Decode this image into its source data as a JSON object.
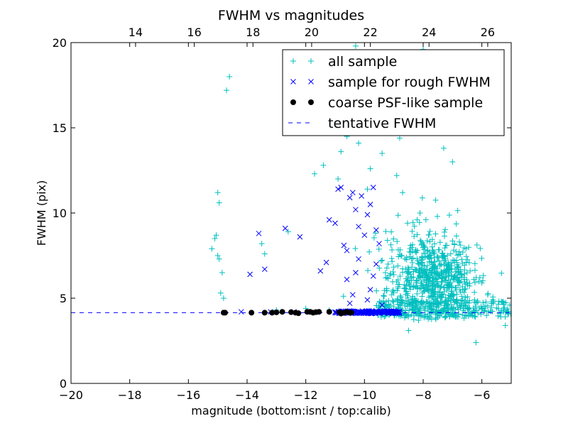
{
  "chart_data": {
    "type": "scatter",
    "title": "FWHM vs magnitudes",
    "xlabel": "magnitude (bottom:isnt / top:calib)",
    "ylabel": "FWHM (pix)",
    "xlim": [
      -20,
      -5
    ],
    "ylim": [
      0,
      20
    ],
    "xticks": [
      -20,
      -18,
      -16,
      -14,
      -12,
      -10,
      -8,
      -6
    ],
    "xtick_labels": [
      "−20",
      "−18",
      "−16",
      "−14",
      "−12",
      "−10",
      "−8",
      "−6"
    ],
    "yticks": [
      0,
      5,
      10,
      15,
      20
    ],
    "ytick_labels": [
      "0",
      "5",
      "10",
      "15",
      "20"
    ],
    "top_axis": {
      "offset": 31.8,
      "ticks": [
        14,
        16,
        18,
        20,
        22,
        24,
        26
      ],
      "tick_labels": [
        "14",
        "16",
        "18",
        "20",
        "22",
        "24",
        "26"
      ]
    },
    "grid": false,
    "legend_position": "upper right",
    "series": [
      {
        "name": "all sample",
        "marker": "plus",
        "color": "#00bfbf",
        "points": [
          [
            -15.2,
            7.9
          ],
          [
            -15.0,
            11.2
          ],
          [
            -14.95,
            10.6
          ],
          [
            -15.1,
            8.5
          ],
          [
            -15.05,
            8.7
          ],
          [
            -15.0,
            7.5
          ],
          [
            -14.95,
            7.3
          ],
          [
            -14.85,
            6.5
          ],
          [
            -14.9,
            5.3
          ],
          [
            -14.8,
            5.0
          ],
          [
            -14.7,
            17.2
          ],
          [
            -14.6,
            18.0
          ],
          [
            -13.5,
            8.2
          ],
          [
            -13.4,
            7.6
          ],
          [
            -12.6,
            8.9
          ],
          [
            -11.7,
            12.3
          ],
          [
            -11.4,
            12.8
          ],
          [
            -11.0,
            15.6
          ],
          [
            -10.9,
            12.0
          ],
          [
            -10.6,
            14.5
          ],
          [
            -10.5,
            16.7
          ],
          [
            -10.8,
            13.6
          ],
          [
            -10.3,
            19.8
          ],
          [
            -10.2,
            14.1
          ],
          [
            -10.0,
            16.3
          ],
          [
            -9.8,
            12.6
          ],
          [
            -9.6,
            17.1
          ],
          [
            -9.4,
            13.5
          ],
          [
            -9.2,
            15.2
          ],
          [
            -9.0,
            18.2
          ],
          [
            -8.8,
            14.4
          ],
          [
            -8.6,
            19.2
          ],
          [
            -8.4,
            16.0
          ],
          [
            -8.2,
            17.6
          ],
          [
            -8.0,
            19.6
          ],
          [
            -7.8,
            15.8
          ],
          [
            -7.6,
            17.0
          ],
          [
            -7.4,
            19.4
          ],
          [
            -7.2,
            16.4
          ],
          [
            -7.0,
            13.0
          ],
          [
            -7.3,
            13.8
          ],
          [
            -7.5,
            14.9
          ],
          [
            -8.5,
            3.1
          ],
          [
            -6.2,
            2.4
          ],
          [
            -5.2,
            3.4
          ],
          [
            -5.05,
            4.6
          ],
          [
            -11.2,
            4.3
          ],
          [
            -13.0,
            4.3
          ],
          [
            -12.0,
            4.4
          ],
          [
            -9.9,
            11.4
          ],
          [
            -8.7,
            11.2
          ],
          [
            -8.9,
            12.2
          ],
          [
            -7.3,
            7.2
          ],
          [
            -7.6,
            6.8
          ],
          [
            -8.1,
            6.2
          ],
          [
            -7.9,
            5.8
          ],
          [
            -7.7,
            5.4
          ],
          [
            -7.5,
            5.1
          ],
          [
            -6.9,
            5.6
          ],
          [
            -6.6,
            6.1
          ],
          [
            -6.4,
            6.6
          ],
          [
            -6.0,
            5.9
          ],
          [
            -5.8,
            5.2
          ],
          [
            -5.6,
            4.8
          ]
        ]
      },
      {
        "name": "sample for rough FWHM",
        "marker": "x",
        "color": "#0000ff",
        "points": [
          [
            -13.9,
            6.4
          ],
          [
            -13.6,
            8.8
          ],
          [
            -13.4,
            6.7
          ],
          [
            -12.7,
            9.1
          ],
          [
            -12.2,
            8.6
          ],
          [
            -11.5,
            6.6
          ],
          [
            -11.3,
            7.1
          ],
          [
            -11.2,
            9.6
          ],
          [
            -11.0,
            9.4
          ],
          [
            -10.9,
            11.4
          ],
          [
            -10.8,
            11.5
          ],
          [
            -10.7,
            8.1
          ],
          [
            -10.6,
            7.8
          ],
          [
            -10.5,
            10.9
          ],
          [
            -10.4,
            11.2
          ],
          [
            -10.3,
            10.2
          ],
          [
            -10.2,
            9.2
          ],
          [
            -10.1,
            11.0
          ],
          [
            -10.0,
            8.7
          ],
          [
            -9.9,
            9.9
          ],
          [
            -9.8,
            10.5
          ],
          [
            -9.7,
            11.5
          ],
          [
            -9.6,
            7.0
          ],
          [
            -10.6,
            6.1
          ],
          [
            -10.4,
            5.2
          ],
          [
            -10.5,
            4.7
          ],
          [
            -10.3,
            6.5
          ],
          [
            -10.2,
            7.3
          ],
          [
            -9.9,
            4.9
          ],
          [
            -9.8,
            5.5
          ],
          [
            -9.7,
            6.3
          ],
          [
            -9.6,
            9.0
          ],
          [
            -9.5,
            8.2
          ],
          [
            -9.4,
            4.6
          ],
          [
            -14.2,
            4.2
          ],
          [
            -13.2,
            4.2
          ],
          [
            -12.4,
            4.2
          ],
          [
            -11.6,
            4.2
          ],
          [
            -11.0,
            4.2
          ],
          [
            -10.5,
            4.15
          ],
          [
            -10.2,
            4.2
          ],
          [
            -9.9,
            4.15
          ],
          [
            -9.7,
            4.2
          ],
          [
            -9.5,
            4.2
          ]
        ]
      },
      {
        "name": "coarse PSF-like sample",
        "marker": "dot",
        "color": "#000000",
        "points": [
          [
            -14.8,
            4.15
          ],
          [
            -14.75,
            4.15
          ],
          [
            -13.85,
            4.15
          ],
          [
            -13.4,
            4.15
          ],
          [
            -13.15,
            4.15
          ],
          [
            -13.0,
            4.17
          ],
          [
            -12.8,
            4.2
          ],
          [
            -12.5,
            4.18
          ],
          [
            -12.35,
            4.15
          ],
          [
            -12.25,
            4.12
          ],
          [
            -11.95,
            4.2
          ],
          [
            -11.85,
            4.2
          ],
          [
            -11.75,
            4.15
          ],
          [
            -11.65,
            4.18
          ],
          [
            -11.55,
            4.2
          ],
          [
            -11.2,
            4.2
          ],
          [
            -10.85,
            4.18
          ],
          [
            -10.8,
            4.1
          ],
          [
            -10.7,
            4.15
          ],
          [
            -10.6,
            4.2
          ],
          [
            -10.5,
            4.15
          ],
          [
            -10.45,
            4.15
          ]
        ]
      },
      {
        "name": "tentative FWHM",
        "marker": "dashed-line",
        "color": "#0000ff",
        "y": 4.15
      }
    ]
  },
  "cloud": {
    "center_x": -7.7,
    "center_y": 6.3,
    "spread_x": 0.75,
    "spread_y": 1.4,
    "count": 700,
    "baseline_count": 260
  }
}
